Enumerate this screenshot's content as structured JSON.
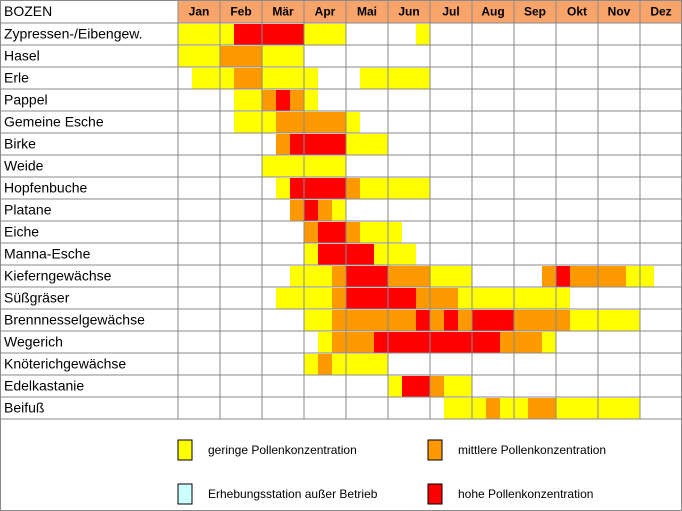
{
  "header": {
    "title": "BOZEN",
    "months": [
      "Jan",
      "Feb",
      "Mär",
      "Apr",
      "Mai",
      "Jun",
      "Jul",
      "Aug",
      "Sep",
      "Okt",
      "Nov",
      "Dez"
    ]
  },
  "legend": [
    {
      "label": "geringe Pollenkonzentration",
      "color": "#ffff00"
    },
    {
      "label": "mittlere Pollenkonzentration",
      "color": "#ff9900"
    },
    {
      "label": "hohe Pollenkonzentration",
      "color": "#ff0000"
    },
    {
      "label": "Erhebungsstation außer Betrieb",
      "color": "#ccffff"
    }
  ],
  "rows": [
    {
      "label": "Zypressen-/Eibengew.",
      "levels": [
        1,
        1,
        1,
        1,
        3,
        3,
        3,
        3,
        3,
        1,
        1,
        1,
        0,
        0,
        0,
        0,
        0,
        1,
        0,
        0,
        0,
        0,
        0,
        0,
        0,
        0,
        0,
        0,
        0,
        0,
        0,
        0,
        0,
        0,
        0,
        0
      ]
    },
    {
      "label": "Hasel",
      "levels": [
        1,
        1,
        1,
        2,
        2,
        2,
        1,
        1,
        1,
        0,
        0,
        0,
        0,
        0,
        0,
        0,
        0,
        0,
        0,
        0,
        0,
        0,
        0,
        0,
        0,
        0,
        0,
        0,
        0,
        0,
        0,
        0,
        0,
        0,
        0,
        0
      ]
    },
    {
      "label": "Erle",
      "levels": [
        0,
        1,
        1,
        1,
        2,
        2,
        1,
        1,
        1,
        1,
        0,
        0,
        0,
        1,
        1,
        1,
        1,
        1,
        0,
        0,
        0,
        0,
        0,
        0,
        0,
        0,
        0,
        0,
        0,
        0,
        0,
        0,
        0,
        0,
        0,
        0
      ]
    },
    {
      "label": "Pappel",
      "levels": [
        0,
        0,
        0,
        0,
        1,
        1,
        2,
        3,
        2,
        1,
        0,
        0,
        0,
        0,
        0,
        0,
        0,
        0,
        0,
        0,
        0,
        0,
        0,
        0,
        0,
        0,
        0,
        0,
        0,
        0,
        0,
        0,
        0,
        0,
        0,
        0
      ]
    },
    {
      "label": "Gemeine Esche",
      "levels": [
        0,
        0,
        0,
        0,
        1,
        1,
        1,
        2,
        2,
        2,
        2,
        2,
        1,
        0,
        0,
        0,
        0,
        0,
        0,
        0,
        0,
        0,
        0,
        0,
        0,
        0,
        0,
        0,
        0,
        0,
        0,
        0,
        0,
        0,
        0,
        0
      ]
    },
    {
      "label": "Birke",
      "levels": [
        0,
        0,
        0,
        0,
        0,
        0,
        0,
        2,
        3,
        3,
        3,
        3,
        1,
        1,
        1,
        0,
        0,
        0,
        0,
        0,
        0,
        0,
        0,
        0,
        0,
        0,
        0,
        0,
        0,
        0,
        0,
        0,
        0,
        0,
        0,
        0
      ]
    },
    {
      "label": "Weide",
      "levels": [
        0,
        0,
        0,
        0,
        0,
        0,
        1,
        1,
        1,
        1,
        1,
        1,
        0,
        0,
        0,
        0,
        0,
        0,
        0,
        0,
        0,
        0,
        0,
        0,
        0,
        0,
        0,
        0,
        0,
        0,
        0,
        0,
        0,
        0,
        0,
        0
      ]
    },
    {
      "label": "Hopfenbuche",
      "levels": [
        0,
        0,
        0,
        0,
        0,
        0,
        0,
        1,
        3,
        3,
        3,
        3,
        2,
        1,
        1,
        1,
        1,
        1,
        0,
        0,
        0,
        0,
        0,
        0,
        0,
        0,
        0,
        0,
        0,
        0,
        0,
        0,
        0,
        0,
        0,
        0
      ]
    },
    {
      "label": "Platane",
      "levels": [
        0,
        0,
        0,
        0,
        0,
        0,
        0,
        0,
        2,
        3,
        2,
        1,
        0,
        0,
        0,
        0,
        0,
        0,
        0,
        0,
        0,
        0,
        0,
        0,
        0,
        0,
        0,
        0,
        0,
        0,
        0,
        0,
        0,
        0,
        0,
        0
      ]
    },
    {
      "label": "Eiche",
      "levels": [
        0,
        0,
        0,
        0,
        0,
        0,
        0,
        0,
        0,
        2,
        3,
        3,
        2,
        1,
        1,
        1,
        0,
        0,
        0,
        0,
        0,
        0,
        0,
        0,
        0,
        0,
        0,
        0,
        0,
        0,
        0,
        0,
        0,
        0,
        0,
        0
      ]
    },
    {
      "label": "Manna-Esche",
      "levels": [
        0,
        0,
        0,
        0,
        0,
        0,
        0,
        0,
        0,
        1,
        3,
        3,
        3,
        3,
        1,
        1,
        1,
        0,
        0,
        0,
        0,
        0,
        0,
        0,
        0,
        0,
        0,
        0,
        0,
        0,
        0,
        0,
        0,
        0,
        0,
        0
      ]
    },
    {
      "label": "Kieferngewächse",
      "levels": [
        0,
        0,
        0,
        0,
        0,
        0,
        0,
        0,
        1,
        1,
        1,
        2,
        3,
        3,
        3,
        2,
        2,
        2,
        1,
        1,
        1,
        0,
        0,
        0,
        0,
        0,
        2,
        3,
        2,
        2,
        2,
        2,
        1,
        1,
        0,
        0
      ]
    },
    {
      "label": "Süßgräser",
      "levels": [
        0,
        0,
        0,
        0,
        0,
        0,
        0,
        1,
        1,
        1,
        1,
        2,
        3,
        3,
        3,
        3,
        3,
        2,
        2,
        2,
        1,
        1,
        1,
        1,
        1,
        1,
        1,
        1,
        0,
        0,
        0,
        0,
        0,
        0,
        0,
        0
      ]
    },
    {
      "label": "Brennnesselgewächse",
      "levels": [
        0,
        0,
        0,
        0,
        0,
        0,
        0,
        0,
        0,
        1,
        1,
        2,
        2,
        2,
        2,
        2,
        2,
        3,
        2,
        3,
        2,
        3,
        3,
        3,
        2,
        2,
        2,
        2,
        1,
        1,
        1,
        1,
        1,
        0,
        0,
        0
      ]
    },
    {
      "label": "Wegerich",
      "levels": [
        0,
        0,
        0,
        0,
        0,
        0,
        0,
        0,
        0,
        0,
        1,
        2,
        2,
        2,
        3,
        3,
        3,
        3,
        3,
        3,
        3,
        3,
        3,
        2,
        2,
        2,
        1,
        0,
        0,
        0,
        0,
        0,
        0,
        0,
        0,
        0
      ]
    },
    {
      "label": "Knöterichgewächse",
      "levels": [
        0,
        0,
        0,
        0,
        0,
        0,
        0,
        0,
        0,
        1,
        2,
        1,
        1,
        1,
        1,
        0,
        0,
        0,
        0,
        0,
        0,
        0,
        0,
        0,
        0,
        0,
        0,
        0,
        0,
        0,
        0,
        0,
        0,
        0,
        0,
        0
      ]
    },
    {
      "label": "Edelkastanie",
      "levels": [
        0,
        0,
        0,
        0,
        0,
        0,
        0,
        0,
        0,
        0,
        0,
        0,
        0,
        0,
        0,
        1,
        3,
        3,
        2,
        1,
        1,
        0,
        0,
        0,
        0,
        0,
        0,
        0,
        0,
        0,
        0,
        0,
        0,
        0,
        0,
        0
      ]
    },
    {
      "label": "Beifuß",
      "levels": [
        0,
        0,
        0,
        0,
        0,
        0,
        0,
        0,
        0,
        0,
        0,
        0,
        0,
        0,
        0,
        0,
        0,
        0,
        0,
        1,
        1,
        1,
        2,
        1,
        1,
        2,
        2,
        1,
        1,
        1,
        1,
        1,
        1,
        0,
        0,
        0
      ]
    }
  ]
}
